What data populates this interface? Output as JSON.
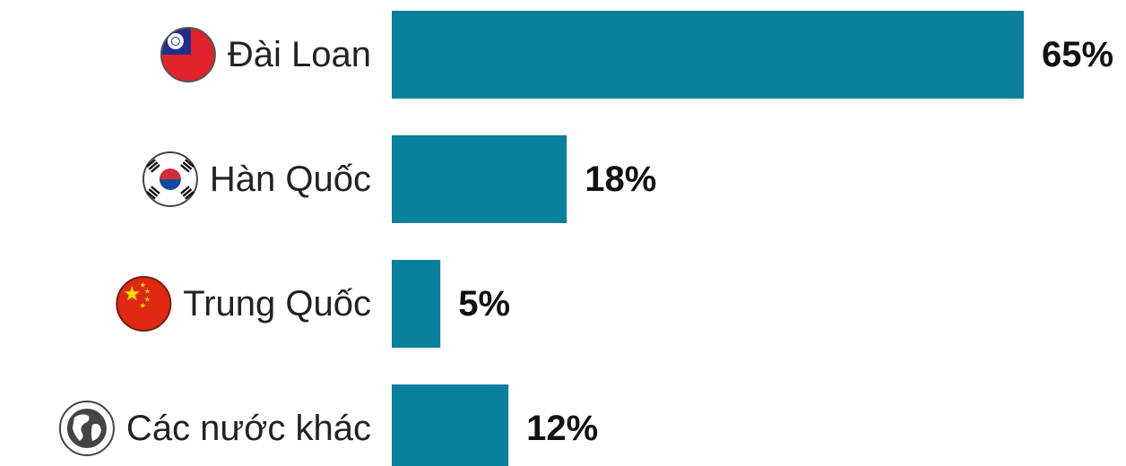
{
  "chart_data": {
    "type": "bar",
    "orientation": "horizontal",
    "categories": [
      "Đài Loan",
      "Hàn Quốc",
      "Trung Quốc",
      "Các nước khác"
    ],
    "values": [
      65,
      18,
      5,
      12
    ],
    "value_labels": [
      "65%",
      "18%",
      "5%",
      "12%"
    ],
    "icons": [
      "taiwan-flag-icon",
      "south-korea-flag-icon",
      "china-flag-icon",
      "globe-icon"
    ],
    "title": "",
    "xlabel": "",
    "ylabel": "",
    "xlim": [
      0,
      65
    ],
    "grid": false,
    "legend": "none",
    "bar_color": "#0a809c"
  }
}
